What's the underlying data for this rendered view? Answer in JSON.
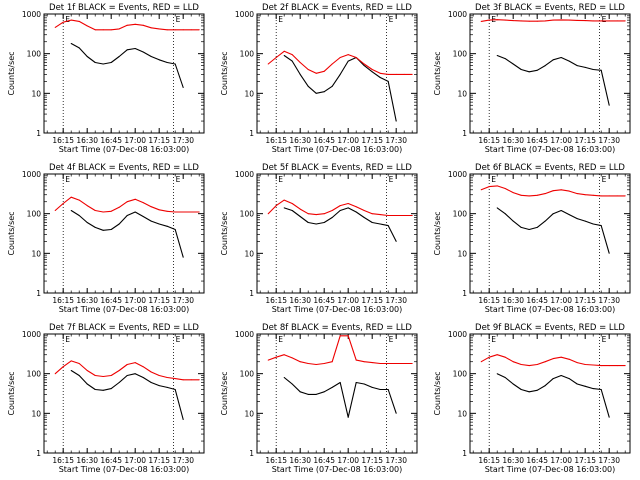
{
  "colors": {
    "events": "#000000",
    "lld": "#ee0000",
    "axes": "#000000"
  },
  "panel_texts": {
    "titles": [
      "Det 1f BLACK = Events, RED = LLD",
      "Det 2f BLACK = Events, RED = LLD",
      "Det 3f BLACK = Events, RED = LLD",
      "Det 4f BLACK = Events, RED = LLD",
      "Det 5f BLACK = Events, RED = LLD",
      "Det 6f BLACK = Events, RED = LLD",
      "Det 7f BLACK = Events, RED = LLD",
      "Det 8f BLACK = Events, RED = LLD",
      "Det 9f BLACK = Events, RED = LLD"
    ],
    "xlabel": "Start Time (07-Dec-08 16:03:00)",
    "ylabel": "Counts/sec",
    "marker_start": "E",
    "marker_end": "E"
  },
  "chart_data": {
    "type": "line",
    "layout": "3x3 grid",
    "x_units": "HH:MM on 07-Dec-08",
    "xlim": [
      "16:03",
      "17:43"
    ],
    "x_tick_labels": [
      "16:15",
      "16:30",
      "16:45",
      "17:00",
      "17:15",
      "17:30"
    ],
    "yscale": "log",
    "ylim": [
      1,
      1000
    ],
    "y_tick_labels": [
      "1",
      "10",
      "100",
      "1000"
    ],
    "vertical_dotted_lines_at": [
      "16:15",
      "17:24"
    ],
    "x": [
      "16:10",
      "16:15",
      "16:20",
      "16:25",
      "16:30",
      "16:35",
      "16:40",
      "16:45",
      "16:50",
      "16:55",
      "17:00",
      "17:05",
      "17:10",
      "17:15",
      "17:20",
      "17:25",
      "17:30",
      "17:35",
      "17:40"
    ],
    "panels": [
      {
        "detector": "1f",
        "series": [
          {
            "name": "Events",
            "values": [
              null,
              null,
              180,
              140,
              85,
              60,
              55,
              60,
              85,
              125,
              135,
              110,
              85,
              70,
              60,
              55,
              14,
              null,
              null
            ]
          },
          {
            "name": "LLD",
            "values": [
              460,
              620,
              700,
              650,
              500,
              400,
              400,
              400,
              420,
              520,
              550,
              520,
              450,
              420,
              400,
              400,
              400,
              400,
              400
            ]
          }
        ]
      },
      {
        "detector": "2f",
        "series": [
          {
            "name": "Events",
            "values": [
              null,
              null,
              90,
              65,
              30,
              15,
              10,
              11,
              15,
              30,
              65,
              80,
              50,
              35,
              25,
              20,
              2,
              null,
              null
            ]
          },
          {
            "name": "LLD",
            "values": [
              55,
              80,
              115,
              95,
              60,
              40,
              32,
              36,
              55,
              80,
              95,
              80,
              55,
              40,
              32,
              30,
              30,
              30,
              30
            ]
          }
        ]
      },
      {
        "detector": "3f",
        "series": [
          {
            "name": "Events",
            "values": [
              null,
              null,
              90,
              75,
              55,
              40,
              35,
              38,
              50,
              70,
              80,
              65,
              50,
              45,
              40,
              38,
              5,
              null,
              null
            ]
          },
          {
            "name": "LLD",
            "values": [
              650,
              700,
              720,
              700,
              680,
              670,
              660,
              660,
              670,
              700,
              710,
              700,
              690,
              680,
              670,
              670,
              670,
              670,
              670
            ]
          }
        ]
      },
      {
        "detector": "4f",
        "series": [
          {
            "name": "Events",
            "values": [
              null,
              null,
              120,
              90,
              60,
              45,
              38,
              40,
              55,
              90,
              110,
              85,
              65,
              55,
              48,
              40,
              8,
              null,
              null
            ]
          },
          {
            "name": "LLD",
            "values": [
              120,
              180,
              260,
              220,
              160,
              120,
              110,
              115,
              145,
              200,
              230,
              190,
              150,
              125,
              115,
              110,
              110,
              110,
              110
            ]
          }
        ]
      },
      {
        "detector": "5f",
        "series": [
          {
            "name": "Events",
            "values": [
              null,
              null,
              140,
              120,
              85,
              60,
              55,
              60,
              80,
              120,
              140,
              110,
              80,
              60,
              55,
              50,
              20,
              null,
              null
            ]
          },
          {
            "name": "LLD",
            "values": [
              100,
              160,
              220,
              180,
              130,
              100,
              95,
              100,
              120,
              160,
              180,
              150,
              120,
              100,
              95,
              90,
              90,
              90,
              90
            ]
          }
        ]
      },
      {
        "detector": "6f",
        "series": [
          {
            "name": "Events",
            "values": [
              null,
              null,
              140,
              100,
              65,
              45,
              40,
              45,
              65,
              100,
              120,
              95,
              75,
              65,
              55,
              50,
              10,
              null,
              null
            ]
          },
          {
            "name": "LLD",
            "values": [
              400,
              480,
              500,
              430,
              340,
              290,
              280,
              290,
              320,
              380,
              400,
              370,
              320,
              300,
              290,
              280,
              280,
              280,
              280
            ]
          }
        ]
      },
      {
        "detector": "7f",
        "series": [
          {
            "name": "Events",
            "values": [
              null,
              null,
              120,
              90,
              55,
              40,
              38,
              42,
              60,
              90,
              100,
              80,
              60,
              50,
              45,
              40,
              7,
              null,
              null
            ]
          },
          {
            "name": "LLD",
            "values": [
              100,
              150,
              210,
              180,
              120,
              90,
              85,
              90,
              120,
              170,
              190,
              150,
              110,
              90,
              80,
              75,
              70,
              70,
              70
            ]
          }
        ]
      },
      {
        "detector": "8f",
        "series": [
          {
            "name": "Events",
            "values": [
              null,
              null,
              80,
              55,
              35,
              30,
              30,
              35,
              45,
              60,
              8,
              60,
              55,
              45,
              40,
              40,
              10,
              null,
              null
            ]
          },
          {
            "name": "LLD",
            "values": [
              220,
              260,
              300,
              250,
              200,
              180,
              170,
              180,
              200,
              900,
              900,
              220,
              200,
              190,
              180,
              180,
              180,
              180,
              180
            ]
          }
        ]
      },
      {
        "detector": "9f",
        "series": [
          {
            "name": "Events",
            "values": [
              null,
              null,
              100,
              80,
              55,
              40,
              35,
              38,
              50,
              75,
              90,
              75,
              55,
              48,
              42,
              40,
              8,
              null,
              null
            ]
          },
          {
            "name": "LLD",
            "values": [
              200,
              260,
              300,
              260,
              200,
              170,
              160,
              170,
              200,
              240,
              260,
              230,
              190,
              170,
              165,
              160,
              160,
              160,
              160
            ]
          }
        ]
      }
    ]
  }
}
